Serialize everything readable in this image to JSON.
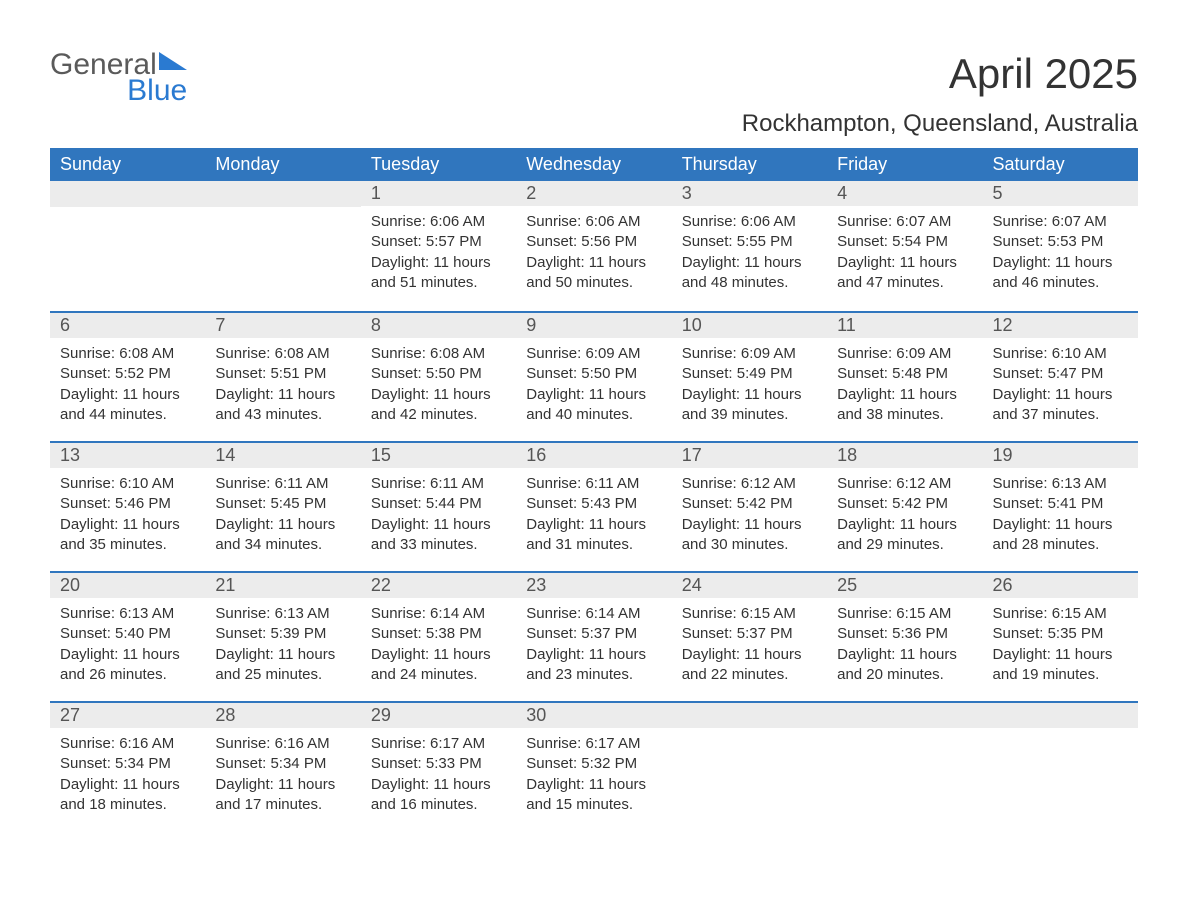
{
  "logo": {
    "text1": "General",
    "text2": "Blue",
    "color_general": "#5a5a5a",
    "color_blue": "#2a7ad1",
    "triangle_color": "#2a7ad1"
  },
  "header": {
    "month_title": "April 2025",
    "location": "Rockhampton, Queensland, Australia"
  },
  "styling": {
    "header_bg": "#3076be",
    "header_text_color": "#ffffff",
    "daynum_bg": "#ececec",
    "daynum_border_top": "#3076be",
    "body_bg": "#ffffff",
    "text_color": "#333333",
    "th_fontsize": 18,
    "title_fontsize": 42,
    "location_fontsize": 24,
    "daynum_fontsize": 18,
    "cell_fontsize": 15
  },
  "day_headers": [
    "Sunday",
    "Monday",
    "Tuesday",
    "Wednesday",
    "Thursday",
    "Friday",
    "Saturday"
  ],
  "weeks": [
    [
      null,
      null,
      {
        "n": "1",
        "sunrise": "Sunrise: 6:06 AM",
        "sunset": "Sunset: 5:57 PM",
        "dl1": "Daylight: 11 hours",
        "dl2": "and 51 minutes."
      },
      {
        "n": "2",
        "sunrise": "Sunrise: 6:06 AM",
        "sunset": "Sunset: 5:56 PM",
        "dl1": "Daylight: 11 hours",
        "dl2": "and 50 minutes."
      },
      {
        "n": "3",
        "sunrise": "Sunrise: 6:06 AM",
        "sunset": "Sunset: 5:55 PM",
        "dl1": "Daylight: 11 hours",
        "dl2": "and 48 minutes."
      },
      {
        "n": "4",
        "sunrise": "Sunrise: 6:07 AM",
        "sunset": "Sunset: 5:54 PM",
        "dl1": "Daylight: 11 hours",
        "dl2": "and 47 minutes."
      },
      {
        "n": "5",
        "sunrise": "Sunrise: 6:07 AM",
        "sunset": "Sunset: 5:53 PM",
        "dl1": "Daylight: 11 hours",
        "dl2": "and 46 minutes."
      }
    ],
    [
      {
        "n": "6",
        "sunrise": "Sunrise: 6:08 AM",
        "sunset": "Sunset: 5:52 PM",
        "dl1": "Daylight: 11 hours",
        "dl2": "and 44 minutes."
      },
      {
        "n": "7",
        "sunrise": "Sunrise: 6:08 AM",
        "sunset": "Sunset: 5:51 PM",
        "dl1": "Daylight: 11 hours",
        "dl2": "and 43 minutes."
      },
      {
        "n": "8",
        "sunrise": "Sunrise: 6:08 AM",
        "sunset": "Sunset: 5:50 PM",
        "dl1": "Daylight: 11 hours",
        "dl2": "and 42 minutes."
      },
      {
        "n": "9",
        "sunrise": "Sunrise: 6:09 AM",
        "sunset": "Sunset: 5:50 PM",
        "dl1": "Daylight: 11 hours",
        "dl2": "and 40 minutes."
      },
      {
        "n": "10",
        "sunrise": "Sunrise: 6:09 AM",
        "sunset": "Sunset: 5:49 PM",
        "dl1": "Daylight: 11 hours",
        "dl2": "and 39 minutes."
      },
      {
        "n": "11",
        "sunrise": "Sunrise: 6:09 AM",
        "sunset": "Sunset: 5:48 PM",
        "dl1": "Daylight: 11 hours",
        "dl2": "and 38 minutes."
      },
      {
        "n": "12",
        "sunrise": "Sunrise: 6:10 AM",
        "sunset": "Sunset: 5:47 PM",
        "dl1": "Daylight: 11 hours",
        "dl2": "and 37 minutes."
      }
    ],
    [
      {
        "n": "13",
        "sunrise": "Sunrise: 6:10 AM",
        "sunset": "Sunset: 5:46 PM",
        "dl1": "Daylight: 11 hours",
        "dl2": "and 35 minutes."
      },
      {
        "n": "14",
        "sunrise": "Sunrise: 6:11 AM",
        "sunset": "Sunset: 5:45 PM",
        "dl1": "Daylight: 11 hours",
        "dl2": "and 34 minutes."
      },
      {
        "n": "15",
        "sunrise": "Sunrise: 6:11 AM",
        "sunset": "Sunset: 5:44 PM",
        "dl1": "Daylight: 11 hours",
        "dl2": "and 33 minutes."
      },
      {
        "n": "16",
        "sunrise": "Sunrise: 6:11 AM",
        "sunset": "Sunset: 5:43 PM",
        "dl1": "Daylight: 11 hours",
        "dl2": "and 31 minutes."
      },
      {
        "n": "17",
        "sunrise": "Sunrise: 6:12 AM",
        "sunset": "Sunset: 5:42 PM",
        "dl1": "Daylight: 11 hours",
        "dl2": "and 30 minutes."
      },
      {
        "n": "18",
        "sunrise": "Sunrise: 6:12 AM",
        "sunset": "Sunset: 5:42 PM",
        "dl1": "Daylight: 11 hours",
        "dl2": "and 29 minutes."
      },
      {
        "n": "19",
        "sunrise": "Sunrise: 6:13 AM",
        "sunset": "Sunset: 5:41 PM",
        "dl1": "Daylight: 11 hours",
        "dl2": "and 28 minutes."
      }
    ],
    [
      {
        "n": "20",
        "sunrise": "Sunrise: 6:13 AM",
        "sunset": "Sunset: 5:40 PM",
        "dl1": "Daylight: 11 hours",
        "dl2": "and 26 minutes."
      },
      {
        "n": "21",
        "sunrise": "Sunrise: 6:13 AM",
        "sunset": "Sunset: 5:39 PM",
        "dl1": "Daylight: 11 hours",
        "dl2": "and 25 minutes."
      },
      {
        "n": "22",
        "sunrise": "Sunrise: 6:14 AM",
        "sunset": "Sunset: 5:38 PM",
        "dl1": "Daylight: 11 hours",
        "dl2": "and 24 minutes."
      },
      {
        "n": "23",
        "sunrise": "Sunrise: 6:14 AM",
        "sunset": "Sunset: 5:37 PM",
        "dl1": "Daylight: 11 hours",
        "dl2": "and 23 minutes."
      },
      {
        "n": "24",
        "sunrise": "Sunrise: 6:15 AM",
        "sunset": "Sunset: 5:37 PM",
        "dl1": "Daylight: 11 hours",
        "dl2": "and 22 minutes."
      },
      {
        "n": "25",
        "sunrise": "Sunrise: 6:15 AM",
        "sunset": "Sunset: 5:36 PM",
        "dl1": "Daylight: 11 hours",
        "dl2": "and 20 minutes."
      },
      {
        "n": "26",
        "sunrise": "Sunrise: 6:15 AM",
        "sunset": "Sunset: 5:35 PM",
        "dl1": "Daylight: 11 hours",
        "dl2": "and 19 minutes."
      }
    ],
    [
      {
        "n": "27",
        "sunrise": "Sunrise: 6:16 AM",
        "sunset": "Sunset: 5:34 PM",
        "dl1": "Daylight: 11 hours",
        "dl2": "and 18 minutes."
      },
      {
        "n": "28",
        "sunrise": "Sunrise: 6:16 AM",
        "sunset": "Sunset: 5:34 PM",
        "dl1": "Daylight: 11 hours",
        "dl2": "and 17 minutes."
      },
      {
        "n": "29",
        "sunrise": "Sunrise: 6:17 AM",
        "sunset": "Sunset: 5:33 PM",
        "dl1": "Daylight: 11 hours",
        "dl2": "and 16 minutes."
      },
      {
        "n": "30",
        "sunrise": "Sunrise: 6:17 AM",
        "sunset": "Sunset: 5:32 PM",
        "dl1": "Daylight: 11 hours",
        "dl2": "and 15 minutes."
      },
      null,
      null,
      null
    ]
  ]
}
